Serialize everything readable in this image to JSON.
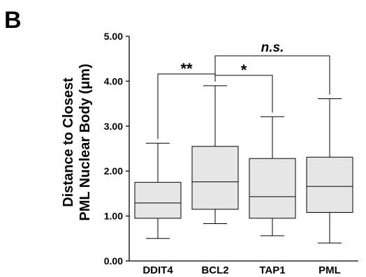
{
  "chart_data": {
    "type": "box",
    "panel_label": "B",
    "ylabel_lines": [
      "Distance to Closest",
      "PML Nuclear Body (μm)"
    ],
    "ylim": [
      0,
      5
    ],
    "y_ticks": [
      "0.00",
      "1.00",
      "2.00",
      "3.00",
      "4.00",
      "5.00"
    ],
    "categories": [
      "DDIT4",
      "BCL2",
      "TAP1",
      "PML"
    ],
    "boxes": [
      {
        "min": 0.5,
        "q1": 0.95,
        "median": 1.29,
        "q3": 1.75,
        "max": 2.62
      },
      {
        "min": 0.83,
        "q1": 1.15,
        "median": 1.76,
        "q3": 2.55,
        "max": 3.9
      },
      {
        "min": 0.56,
        "q1": 0.95,
        "median": 1.43,
        "q3": 2.28,
        "max": 3.21
      },
      {
        "min": 0.4,
        "q1": 1.08,
        "median": 1.66,
        "q3": 2.31,
        "max": 3.61
      }
    ],
    "significance": [
      {
        "from": 0,
        "to": 1,
        "label": "**"
      },
      {
        "from": 1,
        "to": 2,
        "label": "*"
      },
      {
        "from": 1,
        "to": 3,
        "label": "n.s."
      }
    ],
    "box_color": "#e6e6e6",
    "line_color": "#000000"
  }
}
